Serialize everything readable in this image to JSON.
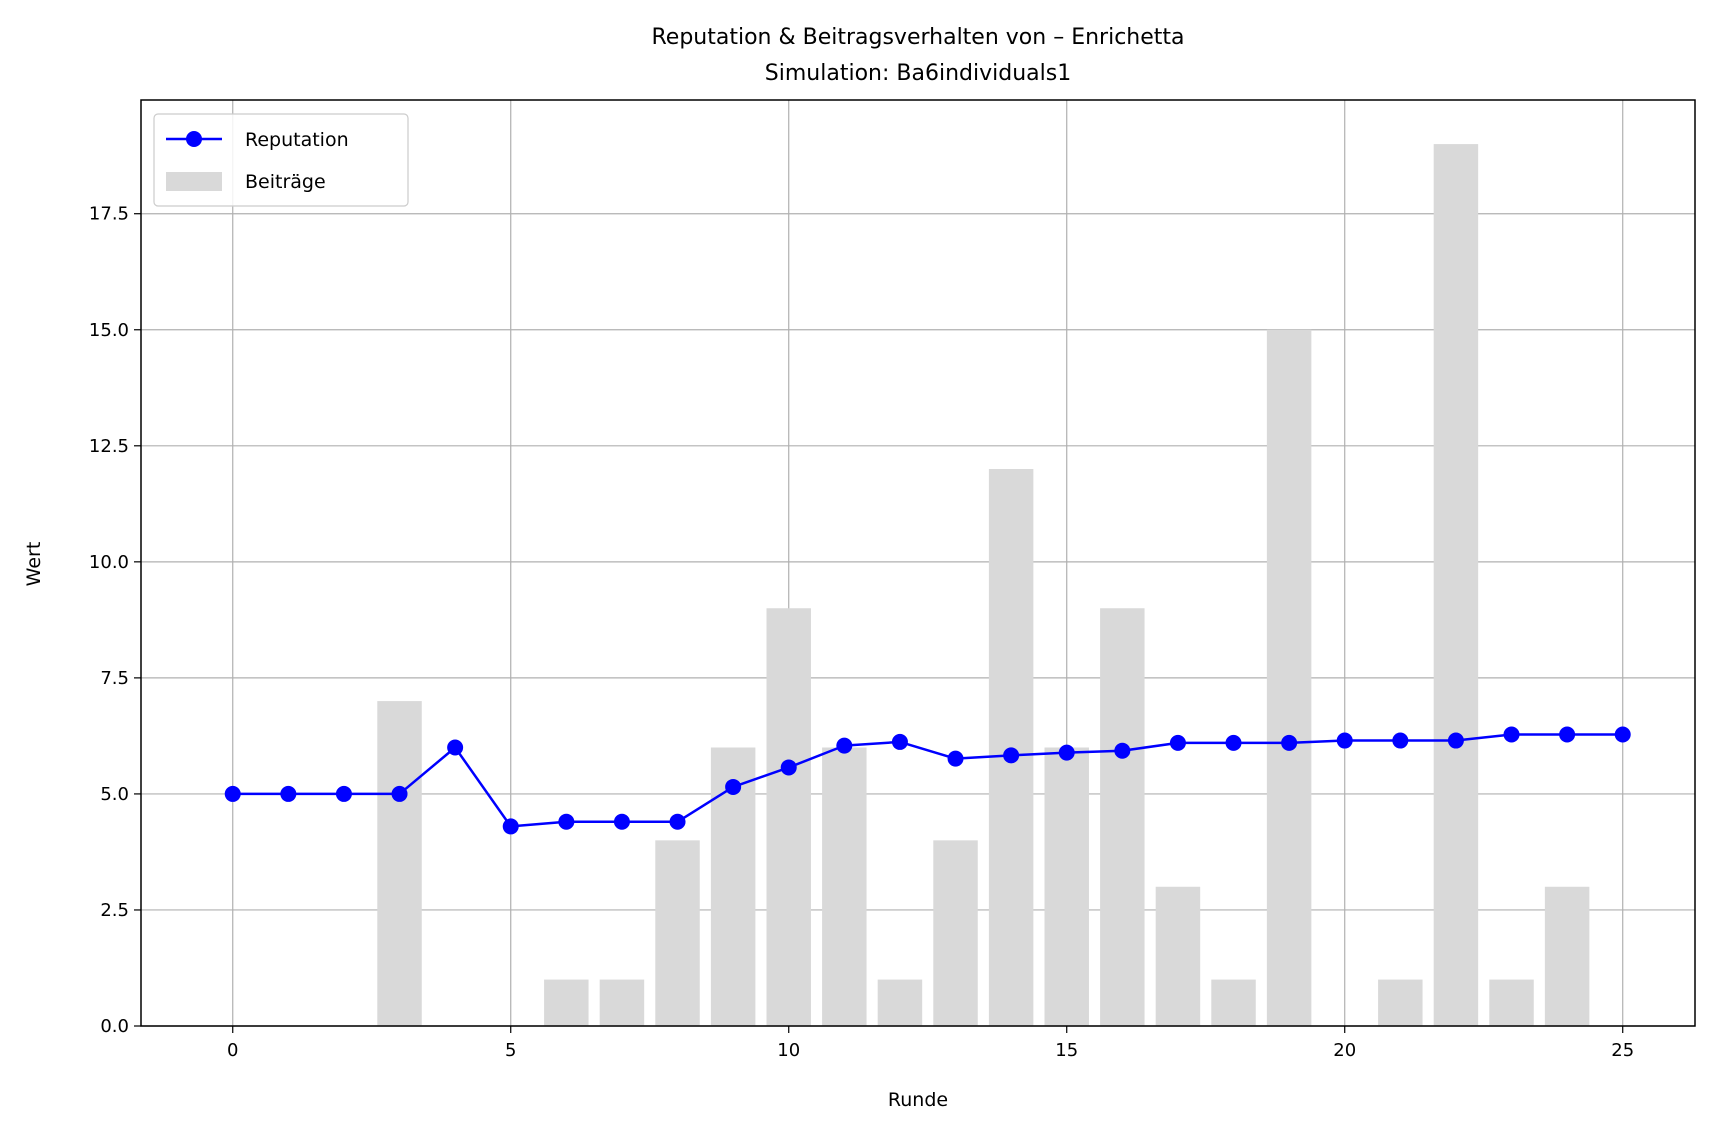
{
  "chart_data": {
    "type": "line",
    "title": "Reputation & Beitragsverhalten von – Enrichetta",
    "subtitle": "Simulation: Ba6individuals1",
    "xlabel": "Runde",
    "ylabel": "Wert",
    "xlim": [
      -1.65,
      26.3
    ],
    "ylim": [
      0,
      19.95
    ],
    "x_ticks": [
      0,
      5,
      10,
      15,
      20,
      25
    ],
    "x_tick_labels": [
      "0",
      "5",
      "10",
      "15",
      "20",
      "25"
    ],
    "y_ticks": [
      0,
      2.5,
      5,
      7.5,
      10,
      12.5,
      15,
      17.5
    ],
    "y_tick_labels": [
      "0.0",
      "2.5",
      "5.0",
      "7.5",
      "10.0",
      "12.5",
      "15.0",
      "17.5"
    ],
    "grid": true,
    "legend_position": "top-left",
    "x": [
      0,
      1,
      2,
      3,
      4,
      5,
      6,
      7,
      8,
      9,
      10,
      11,
      12,
      13,
      14,
      15,
      16,
      17,
      18,
      19,
      20,
      21,
      22,
      23,
      24,
      25
    ],
    "series": [
      {
        "name": "Reputation",
        "kind": "line",
        "color": "#0000ff",
        "marker": "circle",
        "values": [
          5.0,
          5.0,
          5.0,
          5.0,
          6.0,
          4.3,
          4.4,
          4.4,
          4.4,
          5.15,
          5.57,
          6.04,
          6.12,
          5.76,
          5.83,
          5.89,
          5.93,
          6.1,
          6.1,
          6.1,
          6.15,
          6.15,
          6.15,
          6.28,
          6.28,
          6.28
        ]
      },
      {
        "name": "Beiträge",
        "kind": "bar",
        "color": "#d9d9d9",
        "values": [
          0,
          0,
          0,
          7,
          0,
          0,
          1,
          1,
          4,
          6,
          9,
          6,
          1,
          4,
          12,
          6,
          9,
          3,
          1,
          15,
          0,
          1,
          19,
          1,
          3,
          0
        ]
      }
    ]
  }
}
